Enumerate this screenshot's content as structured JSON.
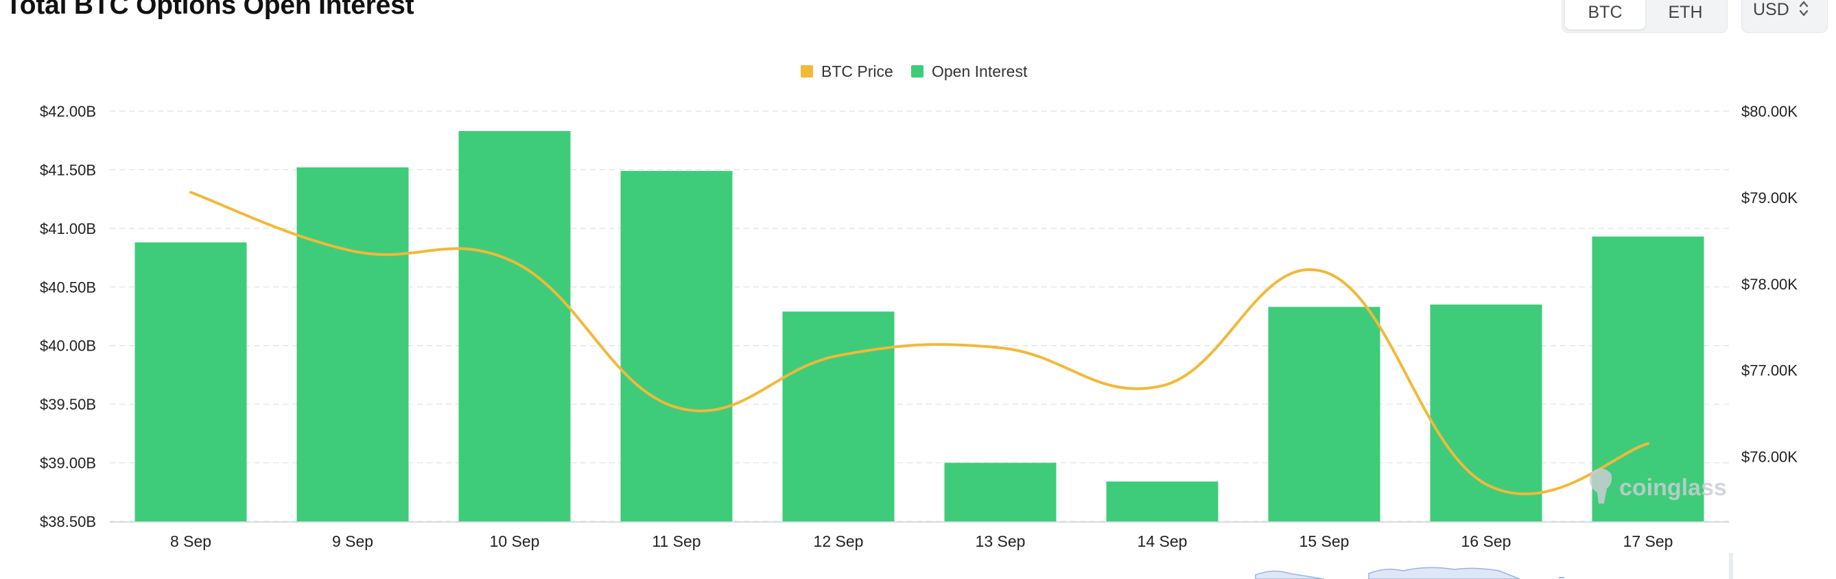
{
  "header": {
    "title": "Total BTC Options Open Interest",
    "asset_buttons": [
      {
        "label": "BTC",
        "active": true
      },
      {
        "label": "ETH",
        "active": false
      }
    ],
    "currency": "USD"
  },
  "watermark": "coinglass",
  "colors": {
    "open_interest": "#3ecc7a",
    "btc_price": "#f0b93a",
    "grid": "#e6e6e6"
  },
  "chart_data": {
    "type": "bar",
    "title": "Total BTC Options Open Interest",
    "categories": [
      "8 Sep",
      "9 Sep",
      "10 Sep",
      "11 Sep",
      "12 Sep",
      "13 Sep",
      "14 Sep",
      "15 Sep",
      "16 Sep",
      "17 Sep"
    ],
    "legend": {
      "placement": "top-center",
      "entries": [
        "BTC Price",
        "Open Interest"
      ]
    },
    "series": [
      {
        "name": "Open Interest",
        "type": "bar",
        "axis": "left",
        "values": [
          40.88,
          41.52,
          41.83,
          41.49,
          40.29,
          39.0,
          38.84,
          40.33,
          40.35,
          40.93
        ]
      },
      {
        "name": "BTC Price",
        "type": "line",
        "axis": "right",
        "values": [
          79060,
          78380,
          78250,
          76570,
          77170,
          77260,
          76820,
          78140,
          75680,
          76150
        ]
      }
    ],
    "y_left": {
      "ticks": [
        "$38.50B",
        "$39.00B",
        "$39.50B",
        "$40.00B",
        "$40.50B",
        "$41.00B",
        "$41.50B",
        "$42.00B"
      ],
      "tick_values": [
        38.5,
        39.0,
        39.5,
        40.0,
        40.5,
        41.0,
        41.5,
        42.0
      ],
      "range": [
        38.5,
        42.0
      ]
    },
    "y_right": {
      "ticks": [
        "$76.00K",
        "$77.00K",
        "$78.00K",
        "$79.00K",
        "$80.00K"
      ],
      "tick_values": [
        76000,
        77000,
        78000,
        79000,
        80000
      ],
      "range": [
        75250,
        80000
      ]
    },
    "grid": true
  }
}
